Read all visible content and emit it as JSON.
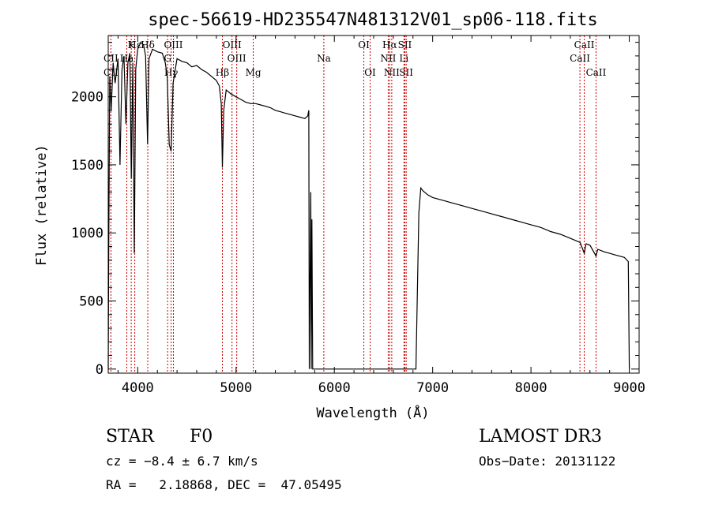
{
  "chart_data": {
    "type": "line",
    "title": "spec-56619-HD235547N481312V01_sp06-118.fits",
    "xlabel": "Wavelength (Å)",
    "ylabel": "Flux (relative)",
    "xlim": [
      3700,
      9100
    ],
    "ylim": [
      -30,
      2450
    ],
    "x_ticks": [
      4000,
      5000,
      6000,
      7000,
      8000,
      9000
    ],
    "x_tick_labels": [
      "4000",
      "5000",
      "6000",
      "7000",
      "8000",
      "9000"
    ],
    "y_ticks": [
      0,
      500,
      1000,
      1500,
      2000
    ],
    "y_tick_labels": [
      "0",
      "500",
      "1000",
      "1500",
      "2000"
    ],
    "series": [
      {
        "name": "flux",
        "color": "#000000",
        "points": [
          [
            3700,
            0
          ],
          [
            3705,
            850
          ],
          [
            3715,
            2150
          ],
          [
            3730,
            1900
          ],
          [
            3750,
            2250
          ],
          [
            3770,
            2100
          ],
          [
            3800,
            2280
          ],
          [
            3820,
            1500
          ],
          [
            3840,
            2200
          ],
          [
            3860,
            2300
          ],
          [
            3880,
            1800
          ],
          [
            3900,
            2250
          ],
          [
            3920,
            2320
          ],
          [
            3935,
            1400
          ],
          [
            3950,
            2250
          ],
          [
            3965,
            850
          ],
          [
            3980,
            2200
          ],
          [
            4000,
            2350
          ],
          [
            4030,
            2400
          ],
          [
            4060,
            2380
          ],
          [
            4080,
            2300
          ],
          [
            4100,
            1650
          ],
          [
            4115,
            2280
          ],
          [
            4150,
            2350
          ],
          [
            4200,
            2330
          ],
          [
            4250,
            2320
          ],
          [
            4280,
            2250
          ],
          [
            4300,
            2150
          ],
          [
            4320,
            1650
          ],
          [
            4340,
            1600
          ],
          [
            4360,
            2100
          ],
          [
            4400,
            2280
          ],
          [
            4450,
            2260
          ],
          [
            4500,
            2250
          ],
          [
            4550,
            2220
          ],
          [
            4600,
            2230
          ],
          [
            4650,
            2200
          ],
          [
            4700,
            2180
          ],
          [
            4750,
            2150
          ],
          [
            4800,
            2120
          ],
          [
            4830,
            2080
          ],
          [
            4850,
            1950
          ],
          [
            4861,
            1480
          ],
          [
            4875,
            1900
          ],
          [
            4900,
            2050
          ],
          [
            4950,
            2020
          ],
          [
            5000,
            2000
          ],
          [
            5050,
            1980
          ],
          [
            5100,
            1960
          ],
          [
            5150,
            1950
          ],
          [
            5200,
            1950
          ],
          [
            5250,
            1940
          ],
          [
            5300,
            1930
          ],
          [
            5350,
            1920
          ],
          [
            5400,
            1900
          ],
          [
            5450,
            1890
          ],
          [
            5500,
            1880
          ],
          [
            5550,
            1870
          ],
          [
            5600,
            1860
          ],
          [
            5650,
            1850
          ],
          [
            5700,
            1840
          ],
          [
            5730,
            1860
          ],
          [
            5740,
            1900
          ],
          [
            5745,
            0
          ],
          [
            5760,
            1300
          ],
          [
            5765,
            0
          ],
          [
            5772,
            1100
          ],
          [
            5780,
            0
          ],
          [
            5800,
            0
          ],
          [
            6000,
            0
          ],
          [
            6500,
            0
          ],
          [
            6800,
            0
          ],
          [
            6830,
            0
          ],
          [
            6860,
            1150
          ],
          [
            6880,
            1330
          ],
          [
            6900,
            1310
          ],
          [
            6950,
            1280
          ],
          [
            7000,
            1260
          ],
          [
            7100,
            1240
          ],
          [
            7200,
            1220
          ],
          [
            7300,
            1200
          ],
          [
            7400,
            1180
          ],
          [
            7500,
            1160
          ],
          [
            7600,
            1140
          ],
          [
            7700,
            1120
          ],
          [
            7800,
            1100
          ],
          [
            7900,
            1080
          ],
          [
            8000,
            1060
          ],
          [
            8100,
            1040
          ],
          [
            8200,
            1010
          ],
          [
            8300,
            990
          ],
          [
            8400,
            960
          ],
          [
            8500,
            930
          ],
          [
            8542,
            850
          ],
          [
            8560,
            920
          ],
          [
            8600,
            910
          ],
          [
            8662,
            830
          ],
          [
            8680,
            880
          ],
          [
            8750,
            860
          ],
          [
            8800,
            850
          ],
          [
            8850,
            840
          ],
          [
            8900,
            830
          ],
          [
            8950,
            820
          ],
          [
            8990,
            790
          ],
          [
            9000,
            0
          ]
        ]
      }
    ],
    "line_markers": [
      {
        "label": "Hε",
        "x": 3970,
        "row": 1
      },
      {
        "label": "K",
        "x": 3934,
        "row": 1
      },
      {
        "label": "Hδ",
        "x": 4102,
        "row": 1
      },
      {
        "label": "OIII",
        "x": 4363,
        "row": 1
      },
      {
        "label": "CII",
        "x": 3727,
        "row": 2
      },
      {
        "label": "Ha",
        "x": 3889,
        "row": 2
      },
      {
        "label": "G",
        "x": 4304,
        "row": 2
      },
      {
        "label": "CII",
        "x": 3727,
        "row": 3
      },
      {
        "label": "Hγ",
        "x": 4340,
        "row": 3
      },
      {
        "label": "Hβ",
        "x": 4861,
        "row": 3
      },
      {
        "label": "OIII",
        "x": 4959,
        "row": 1
      },
      {
        "label": "OIII",
        "x": 5007,
        "row": 2
      },
      {
        "label": "Mg",
        "x": 5175,
        "row": 3
      },
      {
        "label": "Na",
        "x": 5893,
        "row": 2
      },
      {
        "label": "OI",
        "x": 6300,
        "row": 1
      },
      {
        "label": "OI",
        "x": 6364,
        "row": 3
      },
      {
        "label": "Hα",
        "x": 6563,
        "row": 1
      },
      {
        "label": "NII",
        "x": 6548,
        "row": 2
      },
      {
        "label": "NII",
        "x": 6584,
        "row": 3
      },
      {
        "label": "SII",
        "x": 6717,
        "row": 1
      },
      {
        "label": "Li",
        "x": 6708,
        "row": 2
      },
      {
        "label": "SII",
        "x": 6731,
        "row": 3
      },
      {
        "label": "CaII",
        "x": 8542,
        "row": 1
      },
      {
        "label": "CaII",
        "x": 8498,
        "row": 2
      },
      {
        "label": "CaII",
        "x": 8662,
        "row": 3
      }
    ],
    "marker_lines": [
      3727,
      3889,
      3934,
      3970,
      4102,
      4304,
      4340,
      4363,
      4861,
      4959,
      5007,
      5175,
      5893,
      6300,
      6364,
      6548,
      6563,
      6584,
      6708,
      6717,
      6731,
      8498,
      8542,
      8662
    ],
    "marker_color": "#cc0000"
  },
  "info": {
    "object_class": "STAR",
    "subclass": "F0",
    "survey": "LAMOST DR3",
    "cz": "cz = −8.4 ± 6.7 km/s",
    "obs_date": "Obs−Date: 20131122",
    "coords": "RA =   2.18868, DEC =  47.05495"
  }
}
